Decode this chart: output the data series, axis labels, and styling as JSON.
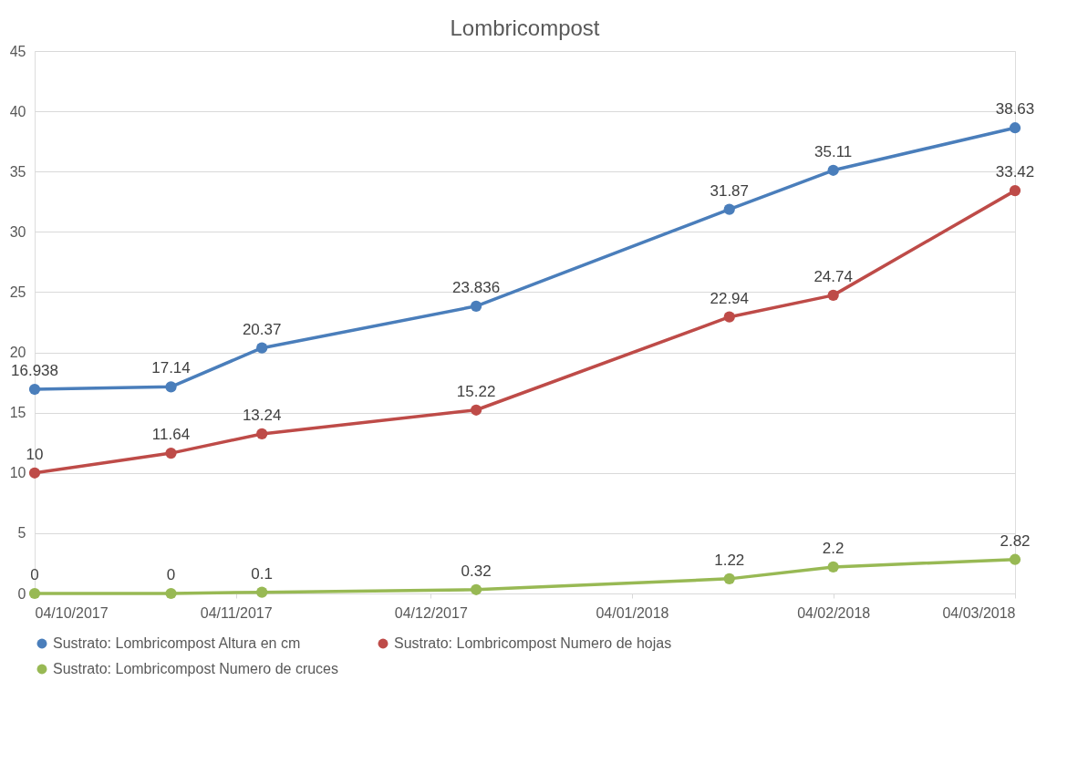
{
  "chart_data": {
    "type": "line",
    "title": "Lombricompost",
    "x": [
      "2017-10-04",
      "2017-10-25",
      "2017-11-08",
      "2017-12-11",
      "2018-01-19",
      "2018-02-04",
      "2018-03-04"
    ],
    "series": [
      {
        "name": "Sustrato: Lombricompost Altura en cm",
        "color": "#4a7ebb",
        "values": [
          16.938,
          17.14,
          20.37,
          23.836,
          31.87,
          35.11,
          38.63
        ]
      },
      {
        "name": "Sustrato: Lombricompost Numero de hojas",
        "color": "#be4b48",
        "values": [
          10,
          11.64,
          13.24,
          15.22,
          22.94,
          24.74,
          33.42
        ]
      },
      {
        "name": "Sustrato: Lombricompost Numero de cruces",
        "color": "#98b954",
        "values": [
          0,
          0,
          0.1,
          0.32,
          1.22,
          2.2,
          2.82
        ]
      }
    ],
    "xlim": [
      "2017-10-04",
      "2018-03-04"
    ],
    "xticks": [
      {
        "value": "2017-10-04",
        "label": "04/10/2017"
      },
      {
        "value": "2017-11-04",
        "label": "04/11/2017"
      },
      {
        "value": "2017-12-04",
        "label": "04/12/2017"
      },
      {
        "value": "2018-01-04",
        "label": "04/01/2018"
      },
      {
        "value": "2018-02-04",
        "label": "04/02/2018"
      },
      {
        "value": "2018-03-04",
        "label": "04/03/2018"
      }
    ],
    "ylim": [
      0,
      45
    ],
    "yticks": [
      0,
      5,
      10,
      15,
      20,
      25,
      30,
      35,
      40,
      45
    ],
    "grid": "y",
    "legend": "bottom",
    "marker": "circle",
    "line_style": "solid",
    "data_labels": true
  }
}
